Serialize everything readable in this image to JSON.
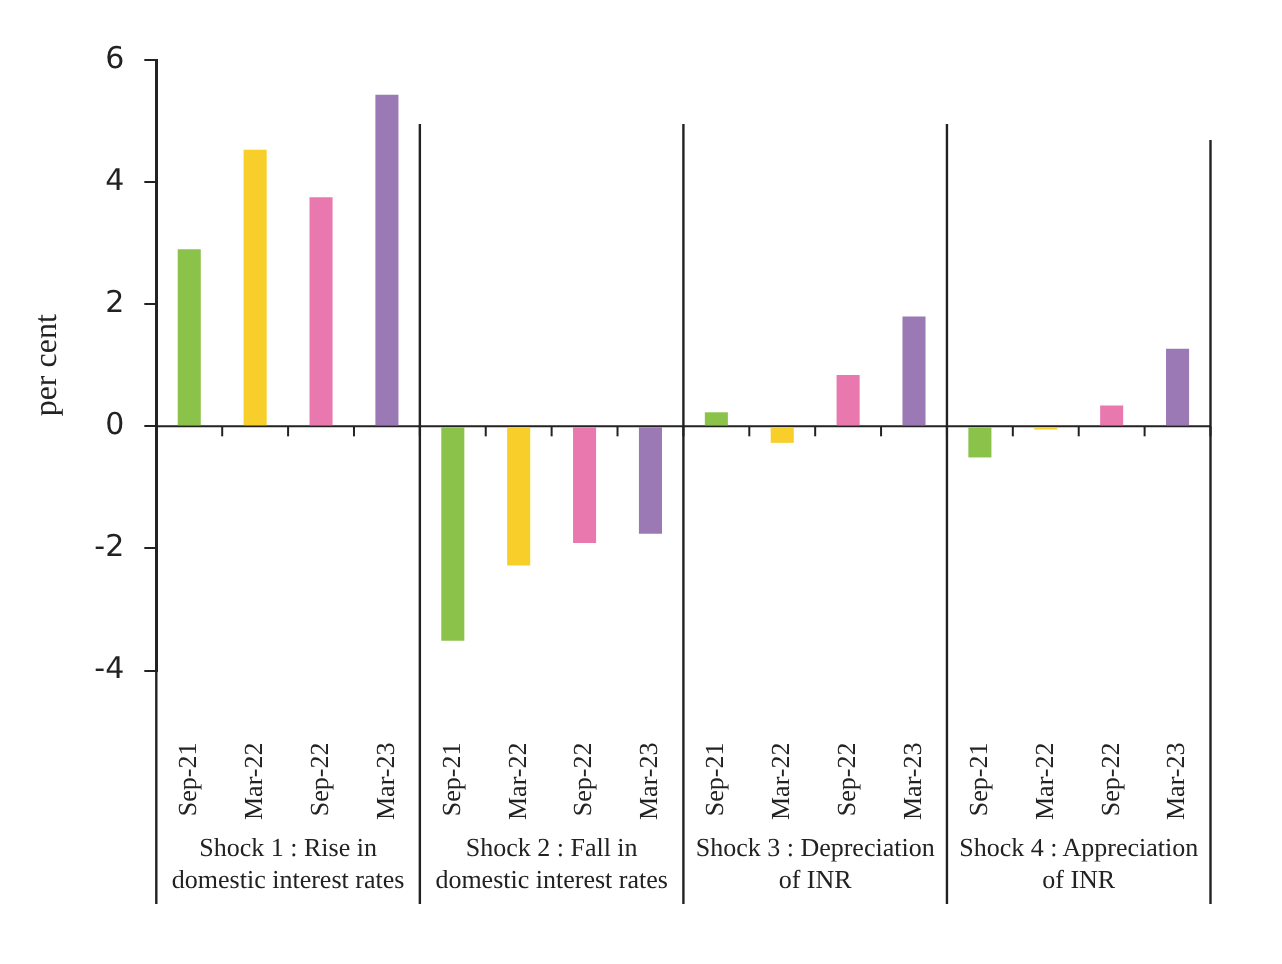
{
  "chart_data": {
    "type": "bar",
    "categories": [
      "Sep-21",
      "Mar-22",
      "Sep-22",
      "Mar-23",
      "Sep-21",
      "Mar-22",
      "Sep-22",
      "Mar-23",
      "Sep-21",
      "Mar-22",
      "Sep-22",
      "Mar-23",
      "Sep-21",
      "Mar-22",
      "Sep-22",
      "Mar-23"
    ],
    "values": [
      2.9,
      4.53,
      3.75,
      5.43,
      -3.51,
      -2.28,
      -1.91,
      -1.76,
      0.23,
      -0.27,
      0.84,
      1.8,
      -0.51,
      -0.05,
      0.34,
      1.27
    ],
    "colors": [
      "#8bc34a",
      "#f7ce2a",
      "#e878ad",
      "#9b79b5",
      "#8bc34a",
      "#f7ce2a",
      "#e878ad",
      "#9b79b5",
      "#8bc34a",
      "#f7ce2a",
      "#e878ad",
      "#9b79b5",
      "#8bc34a",
      "#f7ce2a",
      "#e878ad",
      "#9b79b5"
    ],
    "ylabel": "per cent",
    "ylim": [
      -4,
      6
    ],
    "yticks": [
      -4,
      -2,
      0,
      2,
      4,
      6
    ],
    "annotations": [
      "Shock 1 : Rise in domestic interest rates",
      "Shock 2  : Fall in domestic interest rates",
      "Shock 3 : Depreciation of INR",
      "Shock 4  : Appreciation of INR"
    ],
    "grid": false,
    "legend": false
  }
}
